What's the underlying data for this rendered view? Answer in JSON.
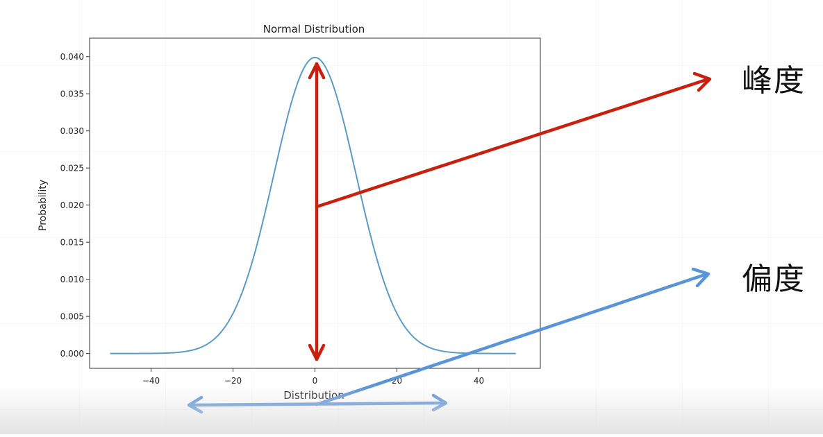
{
  "chart_data": {
    "type": "line",
    "title": "Normal Distribution",
    "xlabel": "Distribution",
    "ylabel": "Probability",
    "xlim": [
      -55,
      55
    ],
    "ylim": [
      -0.002,
      0.0425
    ],
    "xticks": [
      -40,
      -20,
      0,
      20,
      40
    ],
    "yticks": [
      0.0,
      0.005,
      0.01,
      0.015,
      0.02,
      0.025,
      0.03,
      0.035,
      0.04
    ],
    "xtick_labels": [
      "−40",
      "−20",
      "0",
      "20",
      "40"
    ],
    "ytick_labels": [
      "0.000",
      "0.005",
      "0.010",
      "0.015",
      "0.020",
      "0.025",
      "0.030",
      "0.035",
      "0.040"
    ],
    "grid": false,
    "series": [
      {
        "distribution": "normal",
        "mean": 0,
        "std": 10,
        "x_range": [
          -50,
          49
        ],
        "color": "#5b9bc4"
      }
    ]
  },
  "annotations": {
    "kurtosis_label": "峰度",
    "skewness_label": "偏度",
    "kurtosis_color": "#c8200e",
    "skewness_color": "#5a94d8"
  }
}
